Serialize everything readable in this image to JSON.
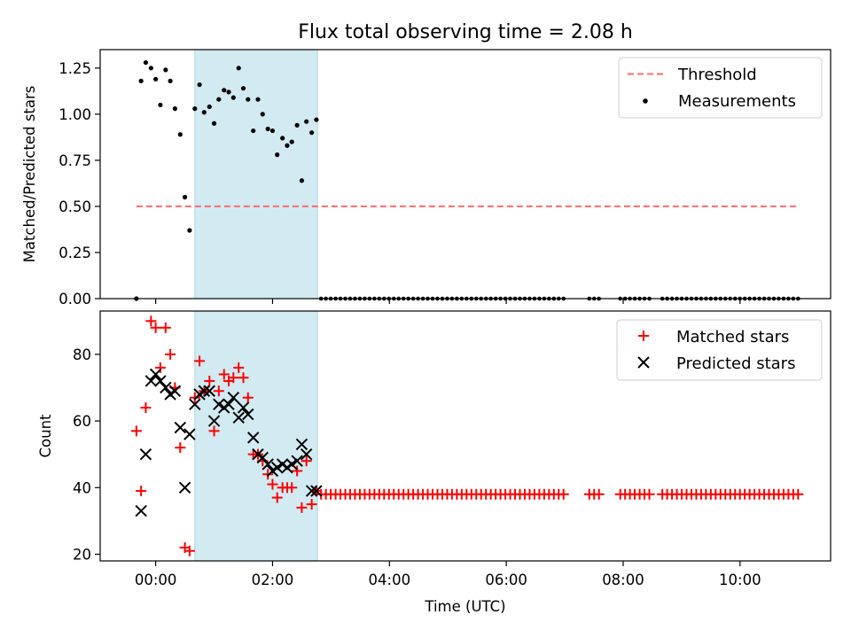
{
  "chart_data": [
    {
      "type": "scatter",
      "title": "Flux total observing time = 2.08 h",
      "xlabel": "",
      "ylabel": "Matched/Predicted stars",
      "xlim_hours": [
        -0.95,
        11.55
      ],
      "ylim": [
        0,
        1.35
      ],
      "xticks": [
        "00:00",
        "02:00",
        "04:00",
        "06:00",
        "08:00",
        "10:00"
      ],
      "xtick_hours": [
        0,
        2,
        4,
        6,
        8,
        10
      ],
      "yticks": [
        0.0,
        0.25,
        0.5,
        0.75,
        1.0,
        1.25
      ],
      "ytick_labels": [
        "0.00",
        "0.25",
        "0.50",
        "0.75",
        "1.00",
        "1.25"
      ],
      "legend_position": "top-right",
      "shaded_span_hours": [
        0.67,
        2.77
      ],
      "shaded_color": "#add8e6",
      "threshold": {
        "name": "Threshold",
        "y": 0.5,
        "x_range_hours": [
          -0.33,
          11.0
        ],
        "color": "#ff6b6b",
        "style": "dashed"
      },
      "series": [
        {
          "name": "Measurements",
          "color": "#000000",
          "marker": "dot",
          "x_hours": [
            -0.33,
            -0.25,
            -0.17,
            -0.08,
            0.0,
            0.08,
            0.17,
            0.25,
            0.33,
            0.42,
            0.5,
            0.58,
            0.67,
            0.75,
            0.83,
            0.92,
            1.0,
            1.08,
            1.17,
            1.25,
            1.33,
            1.42,
            1.5,
            1.58,
            1.67,
            1.75,
            1.83,
            1.92,
            2.0,
            2.08,
            2.17,
            2.25,
            2.33,
            2.42,
            2.5,
            2.58,
            2.67,
            2.75
          ],
          "y": [
            0.0,
            1.18,
            1.28,
            1.25,
            1.19,
            1.05,
            1.24,
            1.18,
            1.03,
            0.89,
            0.55,
            0.37,
            1.03,
            1.16,
            1.01,
            1.04,
            0.95,
            1.08,
            1.13,
            1.12,
            1.09,
            1.25,
            1.14,
            1.08,
            0.91,
            1.08,
            1.0,
            0.92,
            0.91,
            0.78,
            0.87,
            0.83,
            0.85,
            0.94,
            0.64,
            0.96,
            0.9,
            0.97
          ],
          "zero_runs_hours": [
            [
              2.83,
              7.03
            ],
            [
              7.42,
              7.6
            ],
            [
              7.95,
              8.45
            ],
            [
              8.67,
              11.0
            ]
          ],
          "zero_step_hours": 0.083
        }
      ]
    },
    {
      "type": "scatter",
      "title": "",
      "xlabel": "Time (UTC)",
      "ylabel": "Count",
      "xlim_hours": [
        -0.95,
        11.55
      ],
      "ylim": [
        18,
        93
      ],
      "xticks": [
        "00:00",
        "02:00",
        "04:00",
        "06:00",
        "08:00",
        "10:00"
      ],
      "xtick_hours": [
        0,
        2,
        4,
        6,
        8,
        10
      ],
      "yticks": [
        20,
        40,
        60,
        80
      ],
      "ytick_labels": [
        "20",
        "40",
        "60",
        "80"
      ],
      "legend_position": "top-right",
      "shaded_span_hours": [
        0.67,
        2.77
      ],
      "shaded_color": "#add8e6",
      "series": [
        {
          "name": "Matched stars",
          "color": "#ff0000",
          "marker": "plus",
          "x_hours": [
            -0.33,
            -0.25,
            -0.17,
            -0.08,
            0.0,
            0.08,
            0.17,
            0.25,
            0.33,
            0.42,
            0.5,
            0.58,
            0.67,
            0.75,
            0.83,
            0.92,
            1.0,
            1.08,
            1.17,
            1.25,
            1.33,
            1.42,
            1.5,
            1.58,
            1.67,
            1.75,
            1.83,
            1.92,
            2.0,
            2.08,
            2.17,
            2.25,
            2.33,
            2.42,
            2.5,
            2.58,
            2.67,
            2.75
          ],
          "y": [
            57,
            39,
            64,
            90,
            88,
            76,
            88,
            80,
            70,
            52,
            22,
            21,
            67,
            78,
            69,
            72,
            57,
            69,
            74,
            72,
            73,
            76,
            73,
            67,
            50,
            50,
            48,
            44,
            41,
            37,
            40,
            40,
            40,
            45,
            34,
            48,
            35,
            39
          ],
          "constant_runs_hours": [
            [
              2.83,
              7.03
            ],
            [
              7.42,
              7.6
            ],
            [
              7.95,
              8.45
            ],
            [
              8.67,
              11.0
            ]
          ],
          "constant_value": 38,
          "constant_step_hours": 0.083
        },
        {
          "name": "Predicted stars",
          "color": "#000000",
          "marker": "x",
          "x_hours": [
            -0.25,
            -0.17,
            -0.08,
            0.0,
            0.08,
            0.17,
            0.25,
            0.33,
            0.42,
            0.5,
            0.58,
            0.67,
            0.75,
            0.83,
            0.92,
            1.0,
            1.08,
            1.17,
            1.25,
            1.33,
            1.42,
            1.5,
            1.58,
            1.67,
            1.75,
            1.83,
            1.92,
            2.0,
            2.08,
            2.17,
            2.25,
            2.33,
            2.42,
            2.5,
            2.58,
            2.67,
            2.75
          ],
          "y": [
            33,
            50,
            72,
            74,
            72,
            70,
            68,
            69,
            58,
            40,
            56,
            65,
            68,
            69,
            69,
            60,
            65,
            64,
            65,
            67,
            61,
            64,
            62,
            55,
            50,
            49,
            47,
            45,
            46,
            47,
            46,
            47,
            48,
            53,
            50,
            39,
            39
          ]
        }
      ]
    }
  ]
}
